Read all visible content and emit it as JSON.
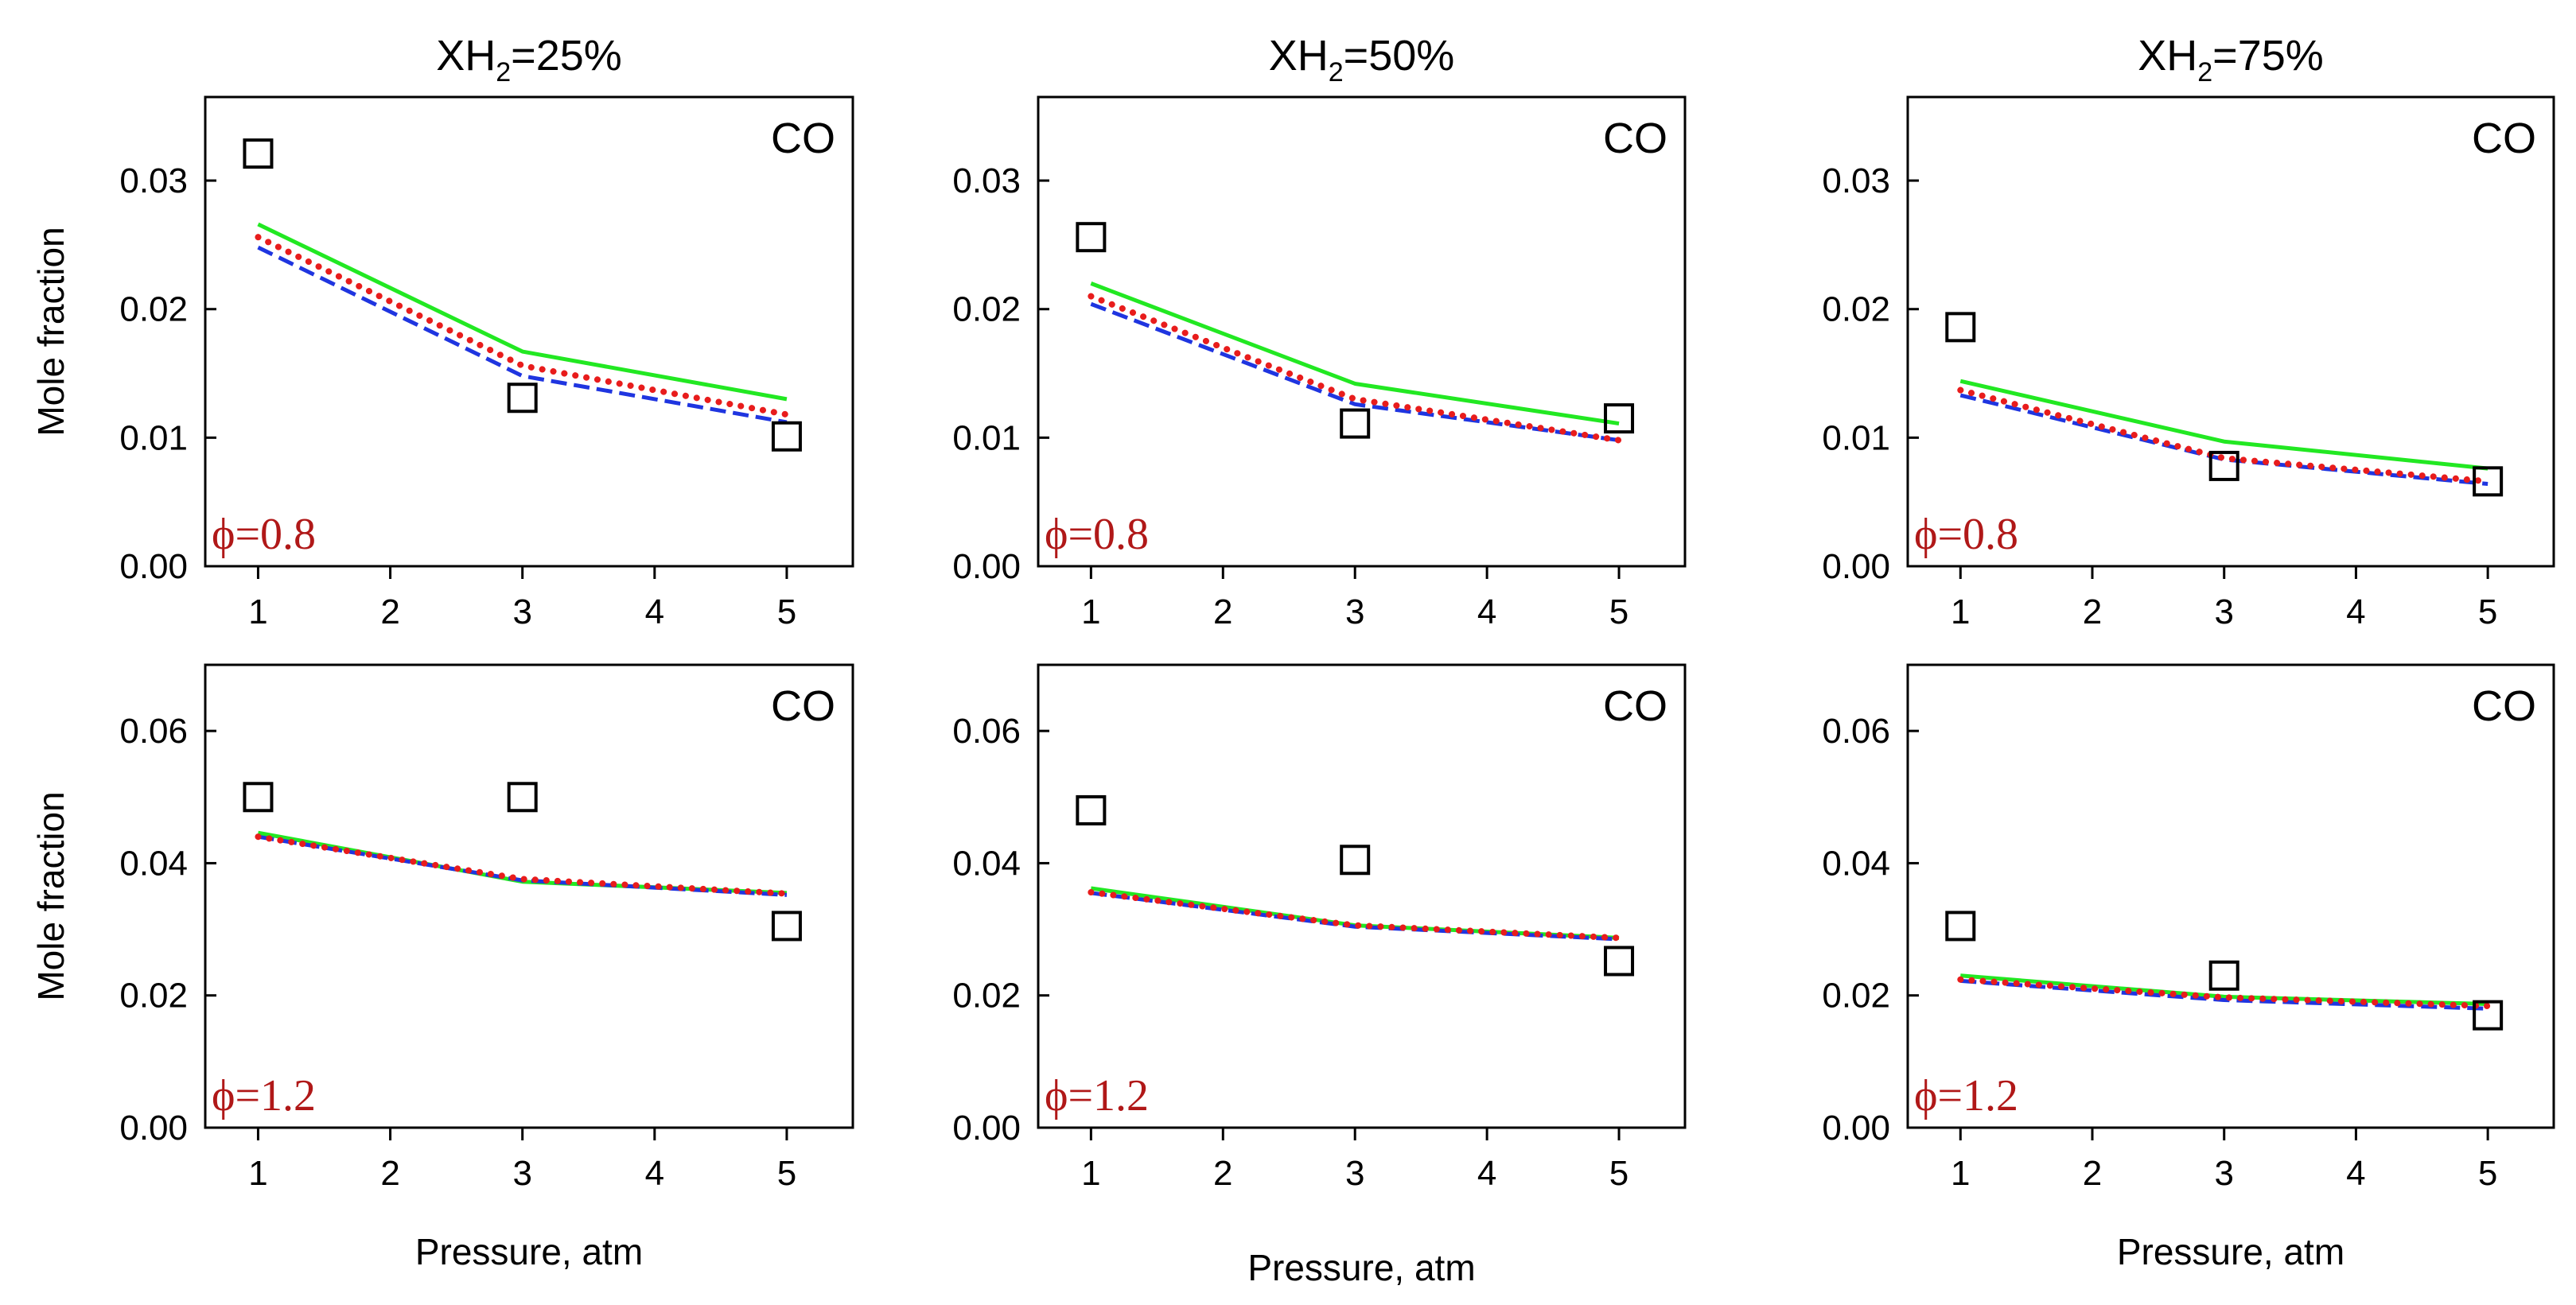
{
  "figure": {
    "x_axis_label": "Pressure, atm",
    "y_axis_label": "Mole fraction",
    "column_titles": [
      {
        "main": "X",
        "sub_h": "H",
        "sub_2": "2",
        "value": "=25%"
      },
      {
        "main": "X",
        "sub_h": "H",
        "sub_2": "2",
        "value": "=50%"
      },
      {
        "main": "X",
        "sub_h": "H",
        "sub_2": "2",
        "value": "=75%"
      }
    ],
    "colors": {
      "experiment": "#000000",
      "green_line": "#22e822",
      "blue_dashed": "#1f35e0",
      "red_dotted": "#e81c1c",
      "phi_label": "#b01818"
    }
  },
  "chart_data": [
    {
      "type": "line",
      "panel": "row1-col1",
      "species_label": "CO",
      "phi_label": "ϕ=0.8",
      "x": [
        1,
        3,
        5
      ],
      "xlim": [
        0.6,
        5.5
      ],
      "xticks": [
        1,
        2,
        3,
        4,
        5
      ],
      "ylim": [
        0,
        0.0365
      ],
      "yticks": [
        0.0,
        0.01,
        0.02,
        0.03
      ],
      "ytick_labels": [
        "0.00",
        "0.01",
        "0.02",
        "0.03"
      ],
      "experiment": [
        0.0321,
        0.0131,
        0.0101
      ],
      "series": [
        {
          "name": "green-solid",
          "values": [
            0.0266,
            0.0167,
            0.013
          ]
        },
        {
          "name": "blue-dashed",
          "values": [
            0.0248,
            0.0148,
            0.0112
          ]
        },
        {
          "name": "red-dotted",
          "values": [
            0.0256,
            0.0156,
            0.0118
          ]
        }
      ]
    },
    {
      "type": "line",
      "panel": "row1-col2",
      "species_label": "CO",
      "phi_label": "ϕ=0.8",
      "x": [
        1,
        3,
        5
      ],
      "xlim": [
        0.6,
        5.5
      ],
      "xticks": [
        1,
        2,
        3,
        4,
        5
      ],
      "ylim": [
        0,
        0.0365
      ],
      "yticks": [
        0.0,
        0.01,
        0.02,
        0.03
      ],
      "ytick_labels": [
        "0.00",
        "0.01",
        "0.02",
        "0.03"
      ],
      "experiment": [
        0.0256,
        0.0111,
        0.0115
      ],
      "series": [
        {
          "name": "green-solid",
          "values": [
            0.022,
            0.0142,
            0.0111
          ]
        },
        {
          "name": "blue-dashed",
          "values": [
            0.0204,
            0.0126,
            0.0098
          ]
        },
        {
          "name": "red-dotted",
          "values": [
            0.021,
            0.013,
            0.0098
          ]
        }
      ]
    },
    {
      "type": "line",
      "panel": "row1-col3",
      "species_label": "CO",
      "phi_label": "ϕ=0.8",
      "x": [
        1,
        3,
        5
      ],
      "xlim": [
        0.6,
        5.5
      ],
      "xticks": [
        1,
        2,
        3,
        4,
        5
      ],
      "ylim": [
        0,
        0.0365
      ],
      "yticks": [
        0.0,
        0.01,
        0.02,
        0.03
      ],
      "ytick_labels": [
        "0.00",
        "0.01",
        "0.02",
        "0.03"
      ],
      "experiment": [
        0.0186,
        0.0078,
        0.0066
      ],
      "series": [
        {
          "name": "green-solid",
          "values": [
            0.0144,
            0.0097,
            0.0076
          ]
        },
        {
          "name": "blue-dashed",
          "values": [
            0.0133,
            0.0083,
            0.0064
          ]
        },
        {
          "name": "red-dotted",
          "values": [
            0.0137,
            0.0084,
            0.0066
          ]
        }
      ]
    },
    {
      "type": "line",
      "panel": "row2-col1",
      "species_label": "CO",
      "phi_label": "ϕ=1.2",
      "x": [
        1,
        3,
        5
      ],
      "xlim": [
        0.6,
        5.5
      ],
      "xticks": [
        1,
        2,
        3,
        4,
        5
      ],
      "ylim": [
        0,
        0.07
      ],
      "yticks": [
        0.0,
        0.02,
        0.04,
        0.06
      ],
      "ytick_labels": [
        "0.00",
        "0.02",
        "0.04",
        "0.06"
      ],
      "experiment": [
        0.05,
        0.05,
        0.0305
      ],
      "series": [
        {
          "name": "green-solid",
          "values": [
            0.0446,
            0.0372,
            0.0355
          ]
        },
        {
          "name": "blue-dashed",
          "values": [
            0.044,
            0.0374,
            0.0352
          ]
        },
        {
          "name": "red-dotted",
          "values": [
            0.044,
            0.0376,
            0.0354
          ]
        }
      ]
    },
    {
      "type": "line",
      "panel": "row2-col2",
      "species_label": "CO",
      "phi_label": "ϕ=1.2",
      "x": [
        1,
        3,
        5
      ],
      "xlim": [
        0.6,
        5.5
      ],
      "xticks": [
        1,
        2,
        3,
        4,
        5
      ],
      "ylim": [
        0,
        0.07
      ],
      "yticks": [
        0.0,
        0.02,
        0.04,
        0.06
      ],
      "ytick_labels": [
        "0.00",
        "0.02",
        "0.04",
        "0.06"
      ],
      "experiment": [
        0.048,
        0.0405,
        0.0252
      ],
      "series": [
        {
          "name": "green-solid",
          "values": [
            0.0362,
            0.0306,
            0.0287
          ]
        },
        {
          "name": "blue-dashed",
          "values": [
            0.0355,
            0.0304,
            0.0285
          ]
        },
        {
          "name": "red-dotted",
          "values": [
            0.0356,
            0.0306,
            0.0287
          ]
        }
      ]
    },
    {
      "type": "line",
      "panel": "row2-col3",
      "species_label": "CO",
      "phi_label": "ϕ=1.2",
      "x": [
        1,
        3,
        5
      ],
      "xlim": [
        0.6,
        5.5
      ],
      "xticks": [
        1,
        2,
        3,
        4,
        5
      ],
      "ylim": [
        0,
        0.07
      ],
      "yticks": [
        0.0,
        0.02,
        0.04,
        0.06
      ],
      "ytick_labels": [
        "0.00",
        "0.02",
        "0.04",
        "0.06"
      ],
      "experiment": [
        0.0305,
        0.023,
        0.017
      ],
      "series": [
        {
          "name": "green-solid",
          "values": [
            0.023,
            0.0198,
            0.0187
          ]
        },
        {
          "name": "blue-dashed",
          "values": [
            0.0222,
            0.0193,
            0.018
          ]
        },
        {
          "name": "red-dotted",
          "values": [
            0.0224,
            0.0197,
            0.0184
          ]
        }
      ]
    }
  ]
}
